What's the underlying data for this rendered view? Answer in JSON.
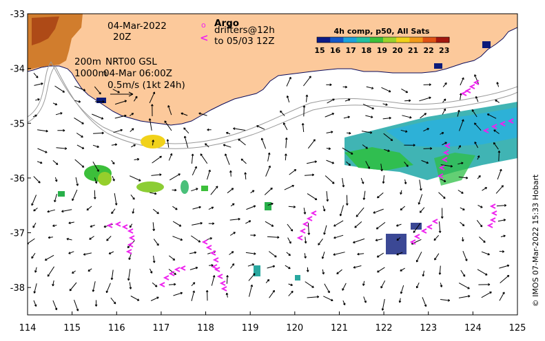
{
  "map": {
    "x_axis": {
      "ticks": [
        "114",
        "115",
        "116",
        "117",
        "118",
        "119",
        "120",
        "121",
        "122",
        "123",
        "124",
        "125"
      ],
      "range": [
        114,
        125
      ]
    },
    "y_axis": {
      "ticks": [
        "-33",
        "-34",
        "-35",
        "-36",
        "-37",
        "-38"
      ],
      "range": [
        -38.5,
        -33
      ]
    },
    "annotations": {
      "date": "04-Mar-2022",
      "time": "20Z",
      "contour_200": "200m",
      "contour_1000": "1000m",
      "product": "NRT00 GSL",
      "product_time": "04-Mar 06:00Z",
      "scale": "0.5m/s (1kt 24h)"
    },
    "legend": {
      "argo_label": "Argo",
      "drifters_label": "drifters@12h",
      "drifters_to": "to 05/03 12Z",
      "argo_symbol": "o",
      "drifter_symbol": "<"
    },
    "colorbar": {
      "title": "4h comp, p50, All Sats",
      "ticks": [
        "15",
        "16",
        "17",
        "18",
        "19",
        "20",
        "21",
        "22",
        "23"
      ],
      "range": [
        15,
        23.5
      ]
    },
    "credit": "© IMOS 07-Mar-2022 15:33 Hobart",
    "colors": {
      "land": "#fcc99b",
      "drifter": "#ee22ee",
      "contour": "#999999"
    }
  }
}
